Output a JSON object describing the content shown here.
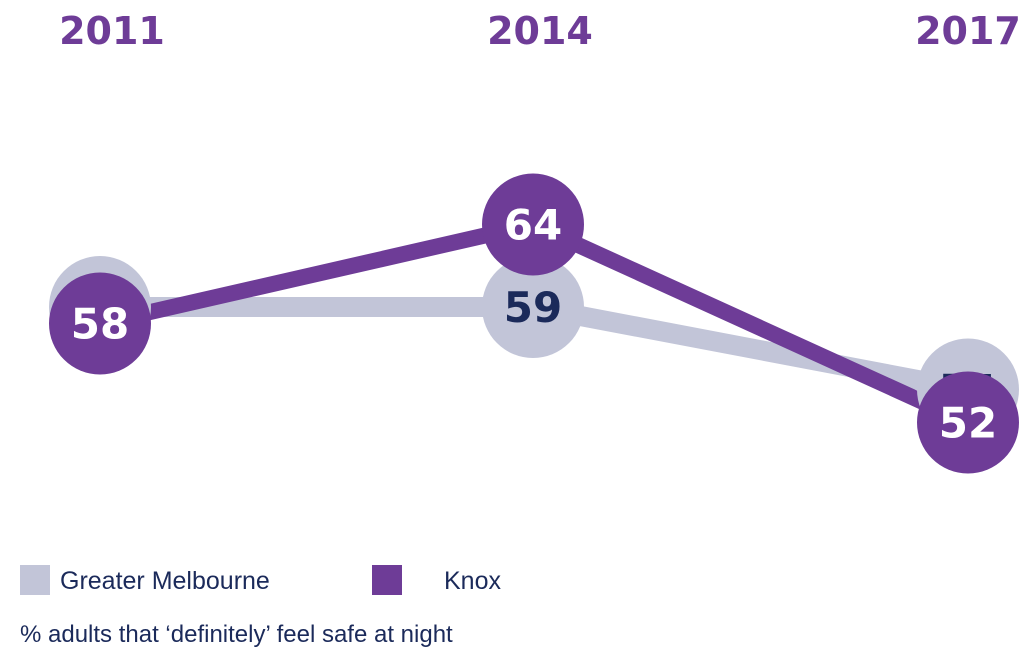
{
  "colors": {
    "greater_melbourne": "#c2c5d8",
    "knox": "#6e3c97",
    "greater_melbourne_label": "#1b2a5a",
    "knox_label": "#ffffff",
    "year_label": "#6e3c97",
    "text": "#1b2a5a"
  },
  "chart_data": {
    "type": "line",
    "x": [
      "2011",
      "2014",
      "2017"
    ],
    "series": [
      {
        "name": "Greater Melbourne",
        "values": [
          59,
          59,
          54
        ]
      },
      {
        "name": "Knox",
        "values": [
          58,
          64,
          52
        ]
      }
    ],
    "ylabel": "% adults that ‘definitely’ feel safe at night",
    "legend": "bottom-left",
    "grid": false
  },
  "legend": {
    "items": [
      {
        "label": "Greater Melbourne",
        "color": "#c2c5d8"
      },
      {
        "label": "Knox",
        "color": "#6e3c97"
      }
    ]
  },
  "caption": "% adults that ‘definitely’ feel safe at night"
}
